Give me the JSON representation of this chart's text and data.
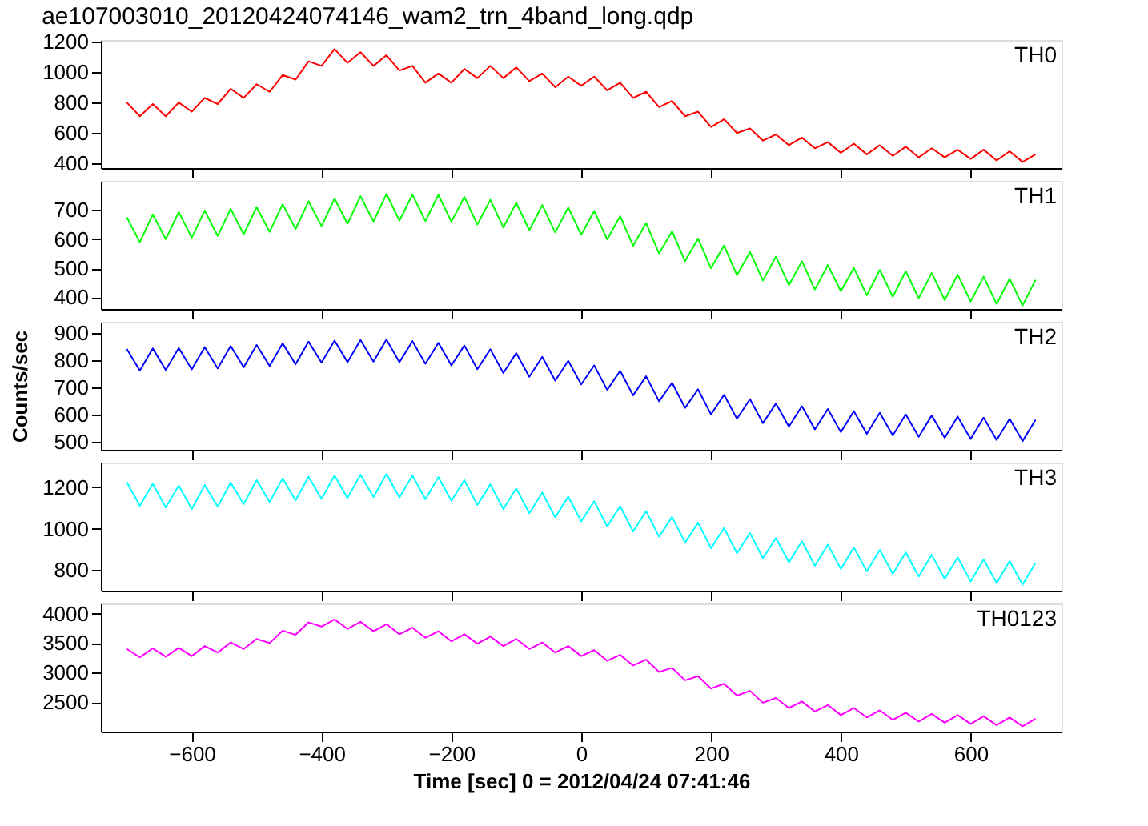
{
  "chart_data": [
    {
      "type": "line",
      "title": "ae107003010_20120424074146_wam2_trn_4band_long.qdp",
      "x": [
        -700,
        -680,
        -660,
        -640,
        -620,
        -600,
        -580,
        -560,
        -540,
        -520,
        -500,
        -480,
        -460,
        -440,
        -420,
        -400,
        -380,
        -360,
        -340,
        -320,
        -300,
        -280,
        -260,
        -240,
        -220,
        -200,
        -180,
        -160,
        -140,
        -120,
        -100,
        -80,
        -60,
        -40,
        -20,
        0,
        20,
        40,
        60,
        80,
        100,
        120,
        140,
        160,
        180,
        200,
        220,
        240,
        260,
        280,
        300,
        320,
        340,
        360,
        380,
        400,
        420,
        440,
        460,
        480,
        500,
        520,
        540,
        560,
        580,
        600,
        620,
        640,
        660,
        680,
        700
      ],
      "xlim": [
        -740,
        740
      ],
      "xticks": [
        -600,
        -400,
        -200,
        0,
        200,
        400,
        600
      ],
      "ylim": [
        370,
        1210
      ],
      "yticks": [
        400,
        600,
        800,
        1000,
        1200
      ],
      "tick_labels": "y",
      "grid": false,
      "line_style": "solid",
      "series": [
        {
          "name": "TH0",
          "color": "#ff0000",
          "values": [
            800,
            710,
            790,
            710,
            800,
            740,
            830,
            790,
            890,
            830,
            920,
            870,
            980,
            950,
            1070,
            1040,
            1150,
            1060,
            1130,
            1040,
            1110,
            1010,
            1040,
            930,
            990,
            930,
            1020,
            960,
            1040,
            960,
            1030,
            940,
            990,
            900,
            970,
            910,
            970,
            880,
            930,
            830,
            870,
            770,
            810,
            710,
            740,
            640,
            690,
            600,
            630,
            550,
            590,
            520,
            570,
            500,
            540,
            470,
            530,
            460,
            520,
            450,
            510,
            440,
            500,
            440,
            490,
            430,
            490,
            420,
            480,
            410,
            460
          ]
        }
      ]
    },
    {
      "type": "line",
      "x": [
        -700,
        -680,
        -660,
        -640,
        -620,
        -600,
        -580,
        -560,
        -540,
        -520,
        -500,
        -480,
        -460,
        -440,
        -420,
        -400,
        -380,
        -360,
        -340,
        -320,
        -300,
        -280,
        -260,
        -240,
        -220,
        -200,
        -180,
        -160,
        -140,
        -120,
        -100,
        -80,
        -60,
        -40,
        -20,
        0,
        20,
        40,
        60,
        80,
        100,
        120,
        140,
        160,
        180,
        200,
        220,
        240,
        260,
        280,
        300,
        320,
        340,
        360,
        380,
        400,
        420,
        440,
        460,
        480,
        500,
        520,
        540,
        560,
        580,
        600,
        620,
        640,
        660,
        680,
        700
      ],
      "xlim": [
        -740,
        740
      ],
      "xticks": [
        -600,
        -400,
        -200,
        0,
        200,
        400,
        600
      ],
      "ylim": [
        360,
        800
      ],
      "yticks": [
        400,
        500,
        600,
        700
      ],
      "tick_labels": "y",
      "grid": false,
      "line_style": "solid",
      "series": [
        {
          "name": "TH1",
          "color": "#00ff00",
          "values": [
            675,
            590,
            685,
            600,
            693,
            605,
            698,
            611,
            704,
            617,
            710,
            625,
            720,
            635,
            730,
            645,
            739,
            653,
            747,
            661,
            755,
            664,
            753,
            662,
            752,
            660,
            745,
            650,
            735,
            640,
            725,
            631,
            717,
            623,
            709,
            615,
            697,
            599,
            679,
            577,
            655,
            551,
            627,
            524,
            602,
            500,
            578,
            476,
            556,
            458,
            540,
            442,
            524,
            427,
            511,
            421,
            501,
            407,
            494,
            402,
            490,
            397,
            484,
            391,
            478,
            386,
            471,
            377,
            464,
            372,
            460
          ]
        }
      ]
    },
    {
      "type": "line",
      "ylabel": "Counts/sec",
      "x": [
        -700,
        -680,
        -660,
        -640,
        -620,
        -600,
        -580,
        -560,
        -540,
        -520,
        -500,
        -480,
        -460,
        -440,
        -420,
        -400,
        -380,
        -360,
        -340,
        -320,
        -300,
        -280,
        -260,
        -240,
        -220,
        -200,
        -180,
        -160,
        -140,
        -120,
        -100,
        -80,
        -60,
        -40,
        -20,
        0,
        20,
        40,
        60,
        80,
        100,
        120,
        140,
        160,
        180,
        200,
        220,
        240,
        260,
        280,
        300,
        320,
        340,
        360,
        380,
        400,
        420,
        440,
        460,
        480,
        500,
        520,
        540,
        560,
        580,
        600,
        620,
        640,
        660,
        680,
        700
      ],
      "xlim": [
        -740,
        740
      ],
      "xticks": [
        -600,
        -400,
        -200,
        0,
        200,
        400,
        600
      ],
      "ylim": [
        470,
        940
      ],
      "yticks": [
        500,
        600,
        700,
        800,
        900
      ],
      "tick_labels": "y",
      "grid": false,
      "line_style": "solid",
      "series": [
        {
          "name": "TH2",
          "color": "#0000ff",
          "values": [
            840,
            761,
            842,
            763,
            844,
            765,
            847,
            769,
            851,
            773,
            855,
            778,
            861,
            784,
            867,
            790,
            871,
            792,
            873,
            794,
            875,
            792,
            869,
            786,
            863,
            780,
            853,
            766,
            839,
            752,
            825,
            738,
            811,
            724,
            797,
            710,
            780,
            690,
            760,
            670,
            740,
            648,
            716,
            624,
            692,
            600,
            672,
            584,
            656,
            568,
            640,
            555,
            630,
            545,
            620,
            535,
            612,
            529,
            606,
            523,
            600,
            518,
            596,
            514,
            592,
            510,
            588,
            506,
            584,
            502,
            580
          ]
        }
      ]
    },
    {
      "type": "line",
      "x": [
        -700,
        -680,
        -660,
        -640,
        -620,
        -600,
        -580,
        -560,
        -540,
        -520,
        -500,
        -480,
        -460,
        -440,
        -420,
        -400,
        -380,
        -360,
        -340,
        -320,
        -300,
        -280,
        -260,
        -240,
        -220,
        -200,
        -180,
        -160,
        -140,
        -120,
        -100,
        -80,
        -60,
        -40,
        -20,
        0,
        20,
        40,
        60,
        80,
        100,
        120,
        140,
        160,
        180,
        200,
        220,
        240,
        260,
        280,
        300,
        320,
        340,
        360,
        380,
        400,
        420,
        440,
        460,
        480,
        500,
        520,
        540,
        560,
        580,
        600,
        620,
        640,
        660,
        680,
        700
      ],
      "xlim": [
        -740,
        740
      ],
      "xticks": [
        -600,
        -400,
        -200,
        0,
        200,
        400,
        600
      ],
      "ylim": [
        700,
        1320
      ],
      "yticks": [
        800,
        1000,
        1200
      ],
      "tick_labels": "y",
      "grid": false,
      "line_style": "solid",
      "series": [
        {
          "name": "TH3",
          "color": "#00ffff",
          "values": [
            1225,
            1111,
            1217,
            1103,
            1209,
            1095,
            1211,
            1107,
            1223,
            1119,
            1235,
            1129,
            1243,
            1137,
            1251,
            1145,
            1257,
            1149,
            1261,
            1153,
            1265,
            1151,
            1257,
            1143,
            1249,
            1135,
            1235,
            1115,
            1215,
            1095,
            1195,
            1075,
            1175,
            1055,
            1155,
            1035,
            1133,
            1011,
            1109,
            987,
            1085,
            961,
            1057,
            933,
            1029,
            905,
            1003,
            881,
            979,
            857,
            955,
            837,
            939,
            821,
            923,
            805,
            909,
            793,
            897,
            781,
            885,
            769,
            873,
            757,
            861,
            745,
            851,
            737,
            843,
            729,
            835
          ]
        }
      ]
    },
    {
      "type": "line",
      "xlabel": "Time [sec] 0 = 2012/04/24 07:41:46",
      "x": [
        -700,
        -680,
        -660,
        -640,
        -620,
        -600,
        -580,
        -560,
        -540,
        -520,
        -500,
        -480,
        -460,
        -440,
        -420,
        -400,
        -380,
        -360,
        -340,
        -320,
        -300,
        -280,
        -260,
        -240,
        -220,
        -200,
        -180,
        -160,
        -140,
        -120,
        -100,
        -80,
        -60,
        -40,
        -20,
        0,
        20,
        40,
        60,
        80,
        100,
        120,
        140,
        160,
        180,
        200,
        220,
        240,
        260,
        280,
        300,
        320,
        340,
        360,
        380,
        400,
        420,
        440,
        460,
        480,
        500,
        520,
        540,
        560,
        580,
        600,
        620,
        640,
        660,
        680,
        700
      ],
      "xlim": [
        -740,
        740
      ],
      "xticks": [
        -600,
        -400,
        -200,
        0,
        200,
        400,
        600
      ],
      "ylim": [
        2000,
        4170
      ],
      "yticks": [
        2500,
        3000,
        3500,
        4000
      ],
      "grid": false,
      "line_style": "solid",
      "series": [
        {
          "name": "TH0123",
          "color": "#ff00ff",
          "values": [
            3400,
            3260,
            3410,
            3270,
            3420,
            3280,
            3450,
            3340,
            3510,
            3400,
            3570,
            3500,
            3710,
            3640,
            3850,
            3780,
            3900,
            3740,
            3860,
            3700,
            3820,
            3650,
            3760,
            3590,
            3700,
            3530,
            3650,
            3490,
            3610,
            3450,
            3570,
            3400,
            3510,
            3340,
            3450,
            3280,
            3380,
            3200,
            3300,
            3120,
            3220,
            3010,
            3080,
            2870,
            2940,
            2730,
            2810,
            2610,
            2690,
            2490,
            2570,
            2400,
            2510,
            2340,
            2450,
            2280,
            2400,
            2240,
            2360,
            2200,
            2320,
            2170,
            2300,
            2150,
            2280,
            2130,
            2260,
            2110,
            2240,
            2090,
            2220
          ]
        }
      ]
    }
  ]
}
